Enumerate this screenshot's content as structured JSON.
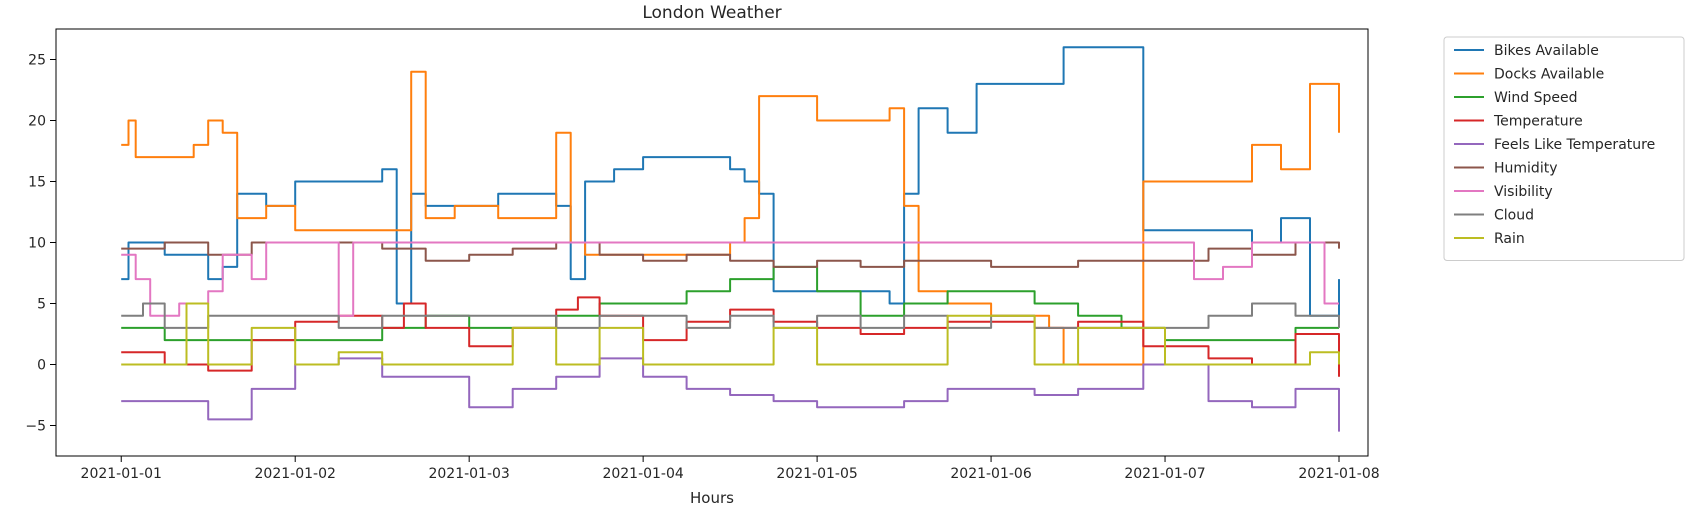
{
  "chart_data": {
    "type": "line",
    "title": "London Weather",
    "xlabel": "Hours",
    "ylabel": "",
    "x_ticks": [
      "2021-01-01",
      "2021-01-02",
      "2021-01-03",
      "2021-01-04",
      "2021-01-05",
      "2021-01-06",
      "2021-01-07",
      "2021-01-08"
    ],
    "y_ticks": [
      -5,
      0,
      5,
      10,
      15,
      20,
      25
    ],
    "xlim": [
      "2020-12-31T15:00",
      "2021-01-08T04:00"
    ],
    "ylim": [
      -7.5,
      27.5
    ],
    "grid": false,
    "legend_position": "outside-right",
    "series": [
      {
        "name": "Bikes Available",
        "color": "#1f77b4",
        "x": [
          "2021-01-01T00:00",
          "2021-01-01T01:00",
          "2021-01-01T06:00",
          "2021-01-01T10:00",
          "2021-01-01T12:00",
          "2021-01-01T14:00",
          "2021-01-01T16:00",
          "2021-01-01T20:00",
          "2021-01-02T00:00",
          "2021-01-02T06:00",
          "2021-01-02T12:00",
          "2021-01-02T14:00",
          "2021-01-02T16:00",
          "2021-01-02T18:00",
          "2021-01-02T22:00",
          "2021-01-03T04:00",
          "2021-01-03T10:00",
          "2021-01-03T12:00",
          "2021-01-03T14:00",
          "2021-01-03T16:00",
          "2021-01-03T20:00",
          "2021-01-04T00:00",
          "2021-01-04T06:00",
          "2021-01-04T12:00",
          "2021-01-04T14:00",
          "2021-01-04T16:00",
          "2021-01-04T18:00",
          "2021-01-05T00:00",
          "2021-01-05T08:00",
          "2021-01-05T10:00",
          "2021-01-05T12:00",
          "2021-01-05T14:00",
          "2021-01-05T18:00",
          "2021-01-05T22:00",
          "2021-01-06T04:00",
          "2021-01-06T08:00",
          "2021-01-06T10:00",
          "2021-01-06T21:00",
          "2021-01-07T06:00",
          "2021-01-07T12:00",
          "2021-01-07T16:00",
          "2021-01-07T20:00",
          "2021-01-08T00:00"
        ],
        "y": [
          7,
          10,
          9,
          9,
          7,
          8,
          14,
          13,
          15,
          15,
          16,
          5,
          14,
          13,
          13,
          14,
          14,
          13,
          7,
          15,
          16,
          17,
          17,
          16,
          15,
          14,
          6,
          6,
          6,
          5,
          14,
          21,
          19,
          23,
          23,
          23,
          26,
          11,
          11,
          10,
          12,
          4,
          7
        ]
      },
      {
        "name": "Docks Available",
        "color": "#ff7f0e",
        "x": [
          "2021-01-01T00:00",
          "2021-01-01T01:00",
          "2021-01-01T02:00",
          "2021-01-01T06:00",
          "2021-01-01T10:00",
          "2021-01-01T12:00",
          "2021-01-01T14:00",
          "2021-01-01T16:00",
          "2021-01-01T20:00",
          "2021-01-02T00:00",
          "2021-01-02T06:00",
          "2021-01-02T12:00",
          "2021-01-02T14:00",
          "2021-01-02T16:00",
          "2021-01-02T18:00",
          "2021-01-02T22:00",
          "2021-01-03T04:00",
          "2021-01-03T10:00",
          "2021-01-03T12:00",
          "2021-01-03T14:00",
          "2021-01-03T16:00",
          "2021-01-03T18:00",
          "2021-01-04T00:00",
          "2021-01-04T06:00",
          "2021-01-04T12:00",
          "2021-01-04T14:00",
          "2021-01-04T16:00",
          "2021-01-04T18:00",
          "2021-01-05T00:00",
          "2021-01-05T08:00",
          "2021-01-05T10:00",
          "2021-01-05T12:00",
          "2021-01-05T14:00",
          "2021-01-05T18:00",
          "2021-01-06T00:00",
          "2021-01-06T04:00",
          "2021-01-06T08:00",
          "2021-01-06T10:00",
          "2021-01-06T21:00",
          "2021-01-07T06:00",
          "2021-01-07T12:00",
          "2021-01-07T16:00",
          "2021-01-07T20:00",
          "2021-01-08T00:00"
        ],
        "y": [
          18,
          20,
          17,
          17,
          18,
          20,
          19,
          12,
          13,
          11,
          11,
          11,
          11,
          24,
          12,
          13,
          12,
          12,
          19,
          10,
          9,
          9,
          9,
          9,
          10,
          12,
          22,
          22,
          20,
          20,
          21,
          13,
          6,
          5,
          4,
          4,
          3,
          0,
          15,
          15,
          18,
          16,
          23,
          19
        ]
      },
      {
        "name": "Wind Speed",
        "color": "#2ca02c",
        "x": [
          "2021-01-01T00:00",
          "2021-01-01T06:00",
          "2021-01-01T12:00",
          "2021-01-01T18:00",
          "2021-01-02T00:00",
          "2021-01-02T06:00",
          "2021-01-02T12:00",
          "2021-01-02T18:00",
          "2021-01-03T00:00",
          "2021-01-03T06:00",
          "2021-01-03T12:00",
          "2021-01-03T18:00",
          "2021-01-04T00:00",
          "2021-01-04T06:00",
          "2021-01-04T12:00",
          "2021-01-04T18:00",
          "2021-01-05T00:00",
          "2021-01-05T06:00",
          "2021-01-05T12:00",
          "2021-01-05T18:00",
          "2021-01-06T00:00",
          "2021-01-06T06:00",
          "2021-01-06T12:00",
          "2021-01-06T18:00",
          "2021-01-07T00:00",
          "2021-01-07T06:00",
          "2021-01-07T12:00",
          "2021-01-07T18:00",
          "2021-01-08T00:00"
        ],
        "y": [
          3,
          2,
          2,
          2,
          2,
          2,
          3,
          4,
          3,
          3,
          4,
          5,
          5,
          6,
          7,
          8,
          6,
          4,
          5,
          6,
          6,
          5,
          4,
          3,
          2,
          2,
          2,
          3,
          3
        ]
      },
      {
        "name": "Temperature",
        "color": "#d62728",
        "x": [
          "2021-01-01T00:00",
          "2021-01-01T06:00",
          "2021-01-01T12:00",
          "2021-01-01T18:00",
          "2021-01-02T00:00",
          "2021-01-02T06:00",
          "2021-01-02T12:00",
          "2021-01-02T15:00",
          "2021-01-02T18:00",
          "2021-01-03T00:00",
          "2021-01-03T06:00",
          "2021-01-03T12:00",
          "2021-01-03T15:00",
          "2021-01-03T18:00",
          "2021-01-04T00:00",
          "2021-01-04T06:00",
          "2021-01-04T12:00",
          "2021-01-04T18:00",
          "2021-01-05T00:00",
          "2021-01-05T06:00",
          "2021-01-05T12:00",
          "2021-01-05T18:00",
          "2021-01-06T00:00",
          "2021-01-06T06:00",
          "2021-01-06T12:00",
          "2021-01-06T21:00",
          "2021-01-07T06:00",
          "2021-01-07T12:00",
          "2021-01-07T18:00",
          "2021-01-08T00:00"
        ],
        "y": [
          1,
          0,
          -0.5,
          2,
          3.5,
          4,
          3,
          5,
          3,
          1.5,
          3,
          4.5,
          5.5,
          4,
          2,
          3.5,
          4.5,
          3.5,
          3,
          2.5,
          3,
          3.5,
          3.5,
          3,
          3.5,
          1.5,
          0.5,
          0,
          2.5,
          -1
        ]
      },
      {
        "name": "Feels Like Temperature",
        "color": "#9467bd",
        "x": [
          "2021-01-01T00:00",
          "2021-01-01T06:00",
          "2021-01-01T12:00",
          "2021-01-01T18:00",
          "2021-01-02T00:00",
          "2021-01-02T06:00",
          "2021-01-02T12:00",
          "2021-01-02T18:00",
          "2021-01-03T00:00",
          "2021-01-03T06:00",
          "2021-01-03T12:00",
          "2021-01-03T18:00",
          "2021-01-04T00:00",
          "2021-01-04T06:00",
          "2021-01-04T12:00",
          "2021-01-04T18:00",
          "2021-01-05T00:00",
          "2021-01-05T06:00",
          "2021-01-05T12:00",
          "2021-01-05T18:00",
          "2021-01-06T00:00",
          "2021-01-06T06:00",
          "2021-01-06T12:00",
          "2021-01-06T21:00",
          "2021-01-07T06:00",
          "2021-01-07T12:00",
          "2021-01-07T18:00",
          "2021-01-08T00:00"
        ],
        "y": [
          -3,
          -3,
          -4.5,
          -2,
          0,
          0.5,
          -1,
          -1,
          -3.5,
          -2,
          -1,
          0.5,
          -1,
          -2,
          -2.5,
          -3,
          -3.5,
          -3.5,
          -3,
          -2,
          -2,
          -2.5,
          -2,
          0,
          -3,
          -3.5,
          -2,
          -5.5
        ]
      },
      {
        "name": "Humidity",
        "color": "#8c564b",
        "x": [
          "2021-01-01T00:00",
          "2021-01-01T06:00",
          "2021-01-01T12:00",
          "2021-01-01T18:00",
          "2021-01-02T00:00",
          "2021-01-02T06:00",
          "2021-01-02T12:00",
          "2021-01-02T18:00",
          "2021-01-03T00:00",
          "2021-01-03T06:00",
          "2021-01-03T12:00",
          "2021-01-03T18:00",
          "2021-01-04T00:00",
          "2021-01-04T06:00",
          "2021-01-04T12:00",
          "2021-01-04T18:00",
          "2021-01-05T00:00",
          "2021-01-05T06:00",
          "2021-01-05T12:00",
          "2021-01-05T18:00",
          "2021-01-06T00:00",
          "2021-01-06T06:00",
          "2021-01-06T12:00",
          "2021-01-06T21:00",
          "2021-01-07T06:00",
          "2021-01-07T12:00",
          "2021-01-07T18:00",
          "2021-01-08T00:00"
        ],
        "y": [
          9.5,
          10,
          9,
          10,
          10,
          10,
          9.5,
          8.5,
          9,
          9.5,
          10,
          9,
          8.5,
          9,
          8.5,
          8,
          8.5,
          8,
          8.5,
          8.5,
          8,
          8,
          8.5,
          8.5,
          9.5,
          9,
          10,
          9.5
        ]
      },
      {
        "name": "Visibility",
        "color": "#e377c2",
        "x": [
          "2021-01-01T00:00",
          "2021-01-01T02:00",
          "2021-01-01T04:00",
          "2021-01-01T08:00",
          "2021-01-01T12:00",
          "2021-01-01T14:00",
          "2021-01-01T18:00",
          "2021-01-01T20:00",
          "2021-01-02T00:00",
          "2021-01-02T06:00",
          "2021-01-02T08:00",
          "2021-01-02T12:00",
          "2021-01-03T00:00",
          "2021-01-06T00:00",
          "2021-01-07T00:00",
          "2021-01-07T04:00",
          "2021-01-07T08:00",
          "2021-01-07T12:00",
          "2021-01-07T18:00",
          "2021-01-07T22:00",
          "2021-01-08T00:00"
        ],
        "y": [
          9,
          7,
          4,
          5,
          6,
          9,
          7,
          10,
          10,
          4,
          10,
          10,
          10,
          10,
          10,
          7,
          8,
          10,
          10,
          5,
          5
        ]
      },
      {
        "name": "Cloud",
        "color": "#7f7f7f",
        "x": [
          "2021-01-01T00:00",
          "2021-01-01T03:00",
          "2021-01-01T06:00",
          "2021-01-01T12:00",
          "2021-01-01T18:00",
          "2021-01-02T00:00",
          "2021-01-02T06:00",
          "2021-01-02T12:00",
          "2021-01-02T18:00",
          "2021-01-03T00:00",
          "2021-01-03T06:00",
          "2021-01-03T12:00",
          "2021-01-03T18:00",
          "2021-01-04T00:00",
          "2021-01-04T06:00",
          "2021-01-04T12:00",
          "2021-01-04T18:00",
          "2021-01-05T00:00",
          "2021-01-05T06:00",
          "2021-01-05T12:00",
          "2021-01-05T18:00",
          "2021-01-06T00:00",
          "2021-01-06T06:00",
          "2021-01-06T21:00",
          "2021-01-07T06:00",
          "2021-01-07T12:00",
          "2021-01-07T18:00",
          "2021-01-08T00:00"
        ],
        "y": [
          4,
          5,
          3,
          4,
          4,
          4,
          3,
          4,
          4,
          4,
          4,
          3,
          4,
          4,
          3,
          4,
          3,
          4,
          3,
          4,
          3,
          4,
          3,
          3,
          4,
          5,
          4,
          3
        ]
      },
      {
        "name": "Rain",
        "color": "#bcbd22",
        "x": [
          "2021-01-01T00:00",
          "2021-01-01T06:00",
          "2021-01-01T09:00",
          "2021-01-01T12:00",
          "2021-01-01T18:00",
          "2021-01-02T00:00",
          "2021-01-02T06:00",
          "2021-01-02T12:00",
          "2021-01-03T00:00",
          "2021-01-03T06:00",
          "2021-01-03T12:00",
          "2021-01-03T18:00",
          "2021-01-04T00:00",
          "2021-01-04T12:00",
          "2021-01-04T18:00",
          "2021-01-05T00:00",
          "2021-01-05T12:00",
          "2021-01-05T18:00",
          "2021-01-06T00:00",
          "2021-01-06T06:00",
          "2021-01-06T12:00",
          "2021-01-07T00:00",
          "2021-01-07T12:00",
          "2021-01-07T20:00",
          "2021-01-08T00:00"
        ],
        "y": [
          0,
          0,
          5,
          0,
          3,
          0,
          1,
          0,
          0,
          3,
          0,
          3,
          0,
          0,
          3,
          0,
          0,
          4,
          4,
          0,
          3,
          0,
          0,
          1,
          0
        ]
      }
    ]
  }
}
